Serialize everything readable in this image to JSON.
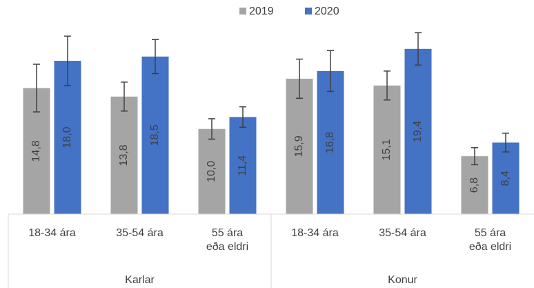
{
  "chart_data": {
    "type": "bar",
    "groups": [
      {
        "name": "Karlar",
        "categories": [
          "18-34 ára",
          "35-54 ára",
          "55 ára\neða eldri"
        ]
      },
      {
        "name": "Konur",
        "categories": [
          "18-34 ára",
          "35-54 ára",
          "55 ára\neða eldri"
        ]
      }
    ],
    "series": [
      {
        "name": "2019",
        "color": "#a5a5a5",
        "values": [
          14.8,
          13.8,
          10.0,
          15.9,
          15.1,
          6.8
        ],
        "value_labels": [
          "14,8",
          "13,8",
          "10,0",
          "15,9",
          "15,1",
          "6,8"
        ],
        "errors": [
          2.8,
          1.7,
          1.2,
          2.3,
          1.7,
          1.0
        ]
      },
      {
        "name": "2020",
        "color": "#4472c4",
        "values": [
          18.0,
          18.5,
          11.4,
          16.8,
          19.4,
          8.4
        ],
        "value_labels": [
          "18,0",
          "18,5",
          "11,4",
          "16,8",
          "19,4",
          "8,4"
        ],
        "errors": [
          2.9,
          2.0,
          1.2,
          2.4,
          1.9,
          1.1
        ]
      }
    ],
    "legend": "top"
  }
}
